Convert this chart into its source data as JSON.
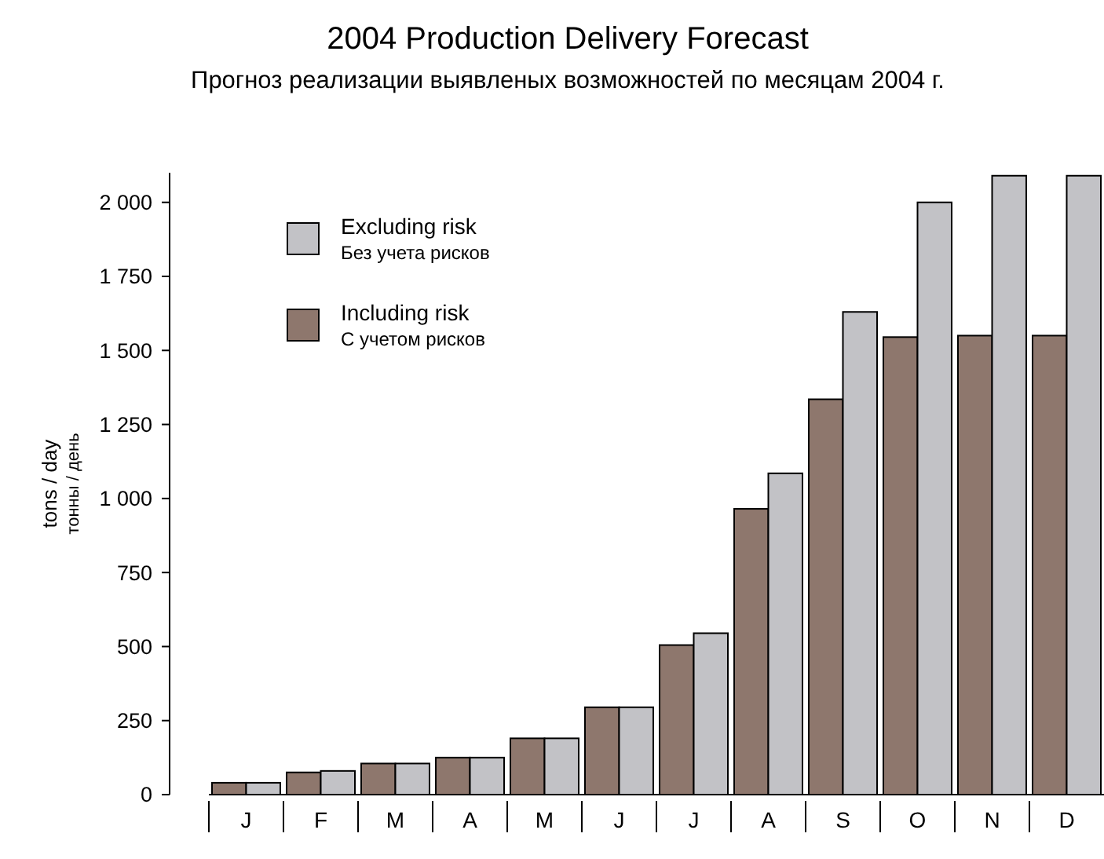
{
  "chart_data": {
    "type": "bar",
    "title": "2004 Production Delivery Forecast",
    "subtitle": "Прогноз реализации выявленых возможностей по месяцам 2004 г.",
    "ylabel": "tons / day\nтонны / день",
    "categories": [
      "J",
      "F",
      "M",
      "A",
      "M",
      "J",
      "J",
      "A",
      "S",
      "O",
      "N",
      "D"
    ],
    "series": [
      {
        "name": "Including risk\nС учетом рисков",
        "color": "#8e776d",
        "values": [
          40,
          75,
          105,
          125,
          190,
          295,
          505,
          965,
          1335,
          1545,
          1550,
          1550
        ]
      },
      {
        "name": "Excluding risk\nБез учета рисков",
        "color": "#c2c2c6",
        "values": [
          40,
          80,
          105,
          125,
          190,
          295,
          545,
          1085,
          1630,
          2000,
          2090,
          2090
        ]
      }
    ],
    "ylim": [
      0,
      2100
    ],
    "yticks": [
      0,
      250,
      500,
      750,
      {
        "value": 1000,
        "label": "1 000"
      },
      {
        "value": 1250,
        "label": "1 250"
      },
      {
        "value": 1500,
        "label": "1 500"
      },
      {
        "value": 1750,
        "label": "1 750"
      },
      {
        "value": 2000,
        "label": "2 000"
      }
    ],
    "grid": false,
    "legend": "top left"
  }
}
